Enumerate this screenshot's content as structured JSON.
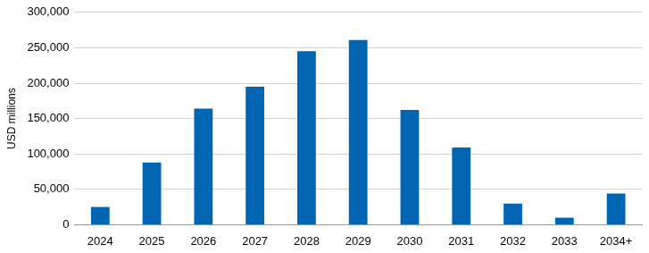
{
  "chart_data": {
    "type": "bar",
    "y_label": "USD millions",
    "categories": [
      "2024",
      "2025",
      "2026",
      "2027",
      "2028",
      "2029",
      "2030",
      "2031",
      "2032",
      "2033",
      "2034+"
    ],
    "values": [
      25000,
      88000,
      164000,
      195000,
      245000,
      261000,
      162000,
      109000,
      30000,
      10000,
      44000
    ],
    "color": "#0066b3",
    "ylim": [
      0,
      300000
    ],
    "yticks": [
      0,
      {
        "value": 50000,
        "label": "50,000"
      },
      {
        "value": 100000,
        "label": "100,000"
      },
      {
        "value": 150000,
        "label": "150,000"
      },
      {
        "value": 200000,
        "label": "200,000"
      },
      {
        "value": 250000,
        "label": "250,000"
      },
      {
        "value": 300000,
        "label": "300,000"
      }
    ],
    "grid": true
  }
}
